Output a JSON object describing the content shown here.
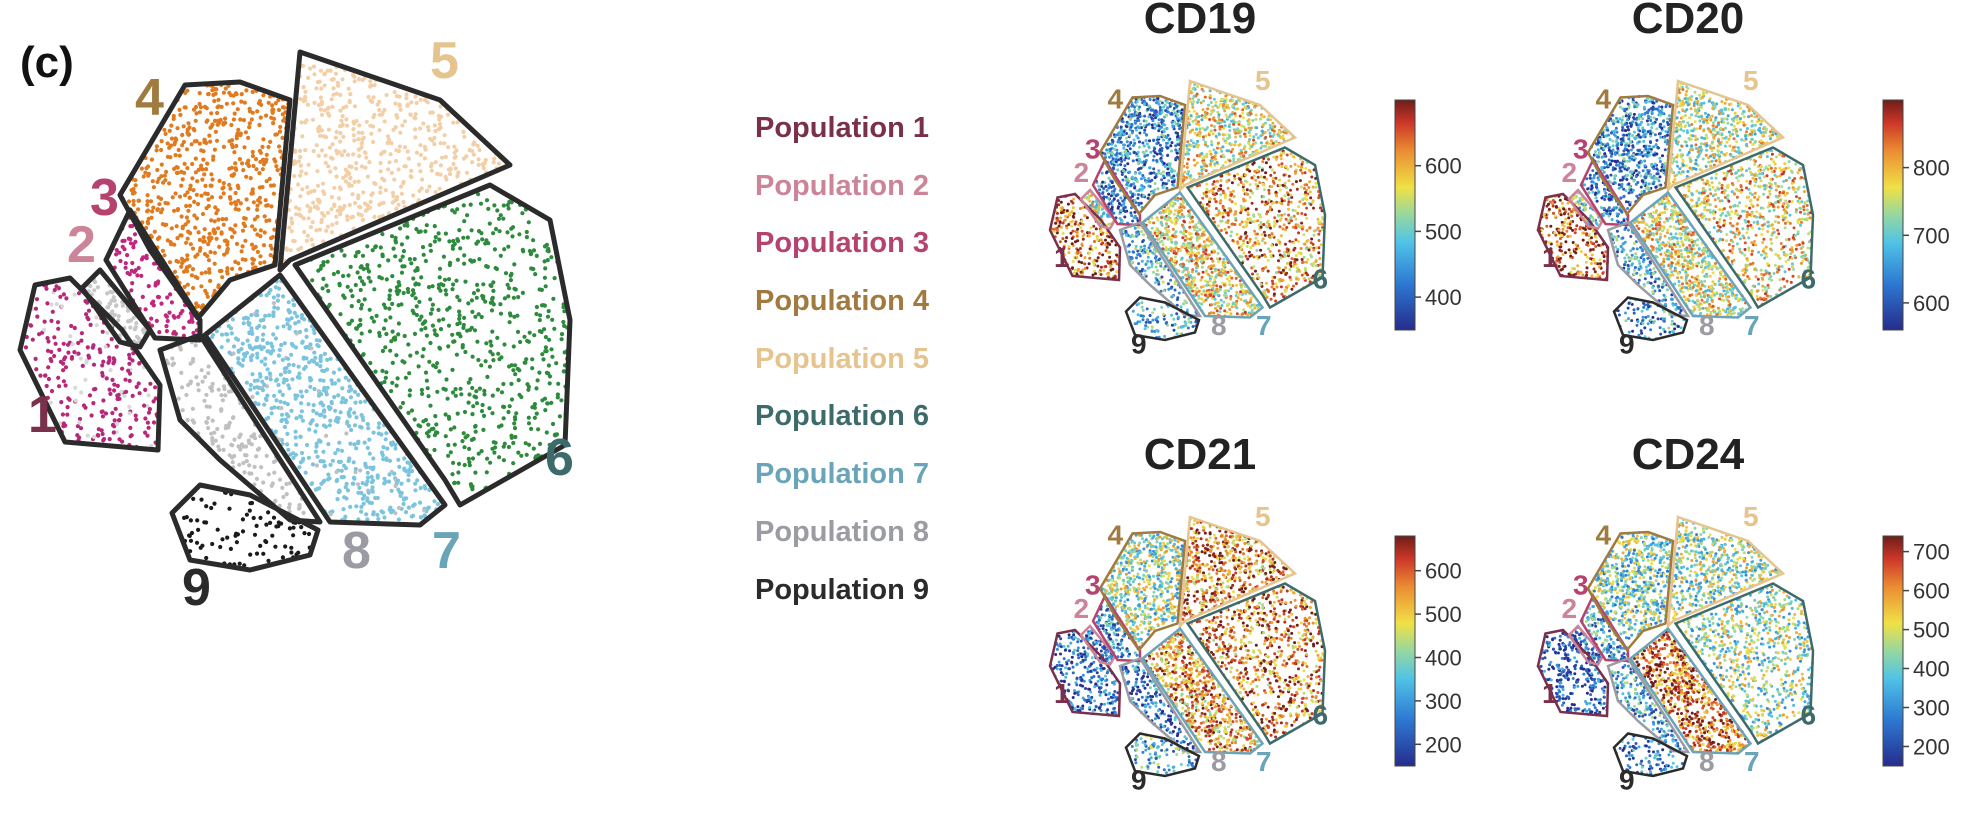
{
  "panel_label": "(c)",
  "chart_data": [
    {
      "type": "scatter",
      "title": "",
      "populations": [
        {
          "id": "1",
          "label": "Population 1",
          "color": "#7a2f4a"
        },
        {
          "id": "2",
          "label": "Population 2",
          "color": "#cc8499"
        },
        {
          "id": "3",
          "label": "Population 3",
          "color": "#b5426f"
        },
        {
          "id": "4",
          "label": "Population 4",
          "color": "#a07a3f"
        },
        {
          "id": "5",
          "label": "Population 5",
          "color": "#e6c48e"
        },
        {
          "id": "6",
          "label": "Population 6",
          "color": "#3d6b6b"
        },
        {
          "id": "7",
          "label": "Population 7",
          "color": "#6aa4b8"
        },
        {
          "id": "8",
          "label": "Population 8",
          "color": "#9b9ba3"
        },
        {
          "id": "9",
          "label": "Population 9",
          "color": "#2b2b2b"
        }
      ],
      "point_colors": {
        "1": "#b5287a",
        "2": "#c7c7c7",
        "3": "#c0287e",
        "4": "#e07b1f",
        "5": "#f2cfa6",
        "6": "#2e8b3e",
        "7": "#7cc4de",
        "8": "#c0c0c0",
        "9": "#1a1a1a"
      }
    },
    {
      "type": "scatter",
      "title": "CD19",
      "colorbar": {
        "ticks": [
          "400",
          "500",
          "600"
        ],
        "range": [
          350,
          700
        ]
      }
    },
    {
      "type": "scatter",
      "title": "CD20",
      "colorbar": {
        "ticks": [
          "600",
          "700",
          "800"
        ],
        "range": [
          560,
          900
        ]
      }
    },
    {
      "type": "scatter",
      "title": "CD21",
      "colorbar": {
        "ticks": [
          "200",
          "300",
          "400",
          "500",
          "600"
        ],
        "range": [
          150,
          680
        ]
      }
    },
    {
      "type": "scatter",
      "title": "CD24",
      "colorbar": {
        "ticks": [
          "200",
          "300",
          "400",
          "500",
          "600",
          "700"
        ],
        "range": [
          150,
          740
        ]
      }
    }
  ]
}
